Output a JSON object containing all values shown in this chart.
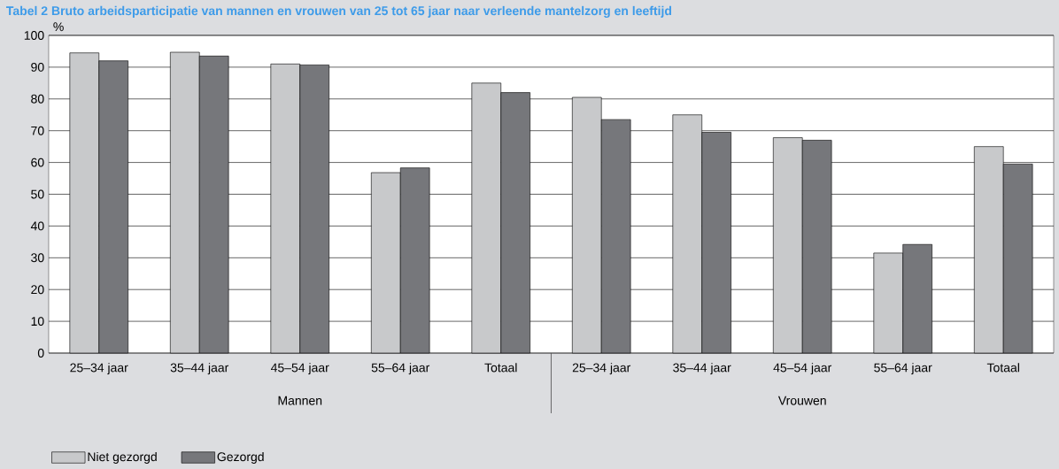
{
  "chart_data": {
    "type": "bar",
    "title": "Tabel 2 Bruto arbeidsparticipatie van mannen en vrouwen van 25 tot 65 jaar naar verleende mantelzorg en leeftijd",
    "ylabel": "%",
    "categories": [
      "25–34 jaar",
      "35–44 jaar",
      "45–54 jaar",
      "55–64 jaar",
      "Totaal",
      "25–34 jaar",
      "35–44 jaar",
      "45–54 jaar",
      "55–64 jaar",
      "Totaal"
    ],
    "series": [
      {
        "name": "Niet gezorgd",
        "color": "#c8c9cb",
        "values": [
          94.5,
          94.7,
          91,
          56.8,
          85,
          80.5,
          75,
          67.8,
          31.5,
          65
        ]
      },
      {
        "name": "Gezorgd",
        "color": "#76777b",
        "values": [
          92,
          93.5,
          90.7,
          58.3,
          82,
          73.5,
          69.5,
          67,
          34.2,
          59.5
        ]
      }
    ],
    "ylim": [
      0,
      100
    ],
    "yticks": [
      0,
      10,
      20,
      30,
      40,
      50,
      60,
      70,
      80,
      90,
      100
    ],
    "grid": "y",
    "legend": "bottom left",
    "annotations": [
      "Mannen",
      "Vrouwen"
    ]
  }
}
